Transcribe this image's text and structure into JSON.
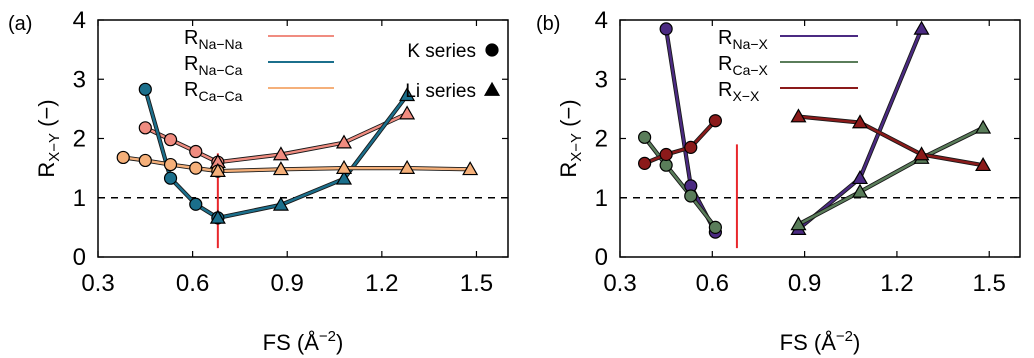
{
  "chart_data": [
    {
      "panel_label": "(a)",
      "type": "line",
      "xlabel": "FS (Å",
      "xlabel_sup": "−2",
      "xlabel_close": ")",
      "ylabel": "R",
      "ylabel_sub": "X−Y",
      "ylabel_unit": " (−)",
      "xlim": [
        0.3,
        1.6
      ],
      "ylim": [
        0,
        4
      ],
      "xticks": [
        0.3,
        0.6,
        0.9,
        1.2,
        1.5
      ],
      "xtick_labels": [
        "0.3",
        "0.6",
        "0.9",
        "1.2",
        "1.5"
      ],
      "yticks": [
        0,
        1,
        2,
        3,
        4
      ],
      "ytick_labels": [
        "0",
        "1",
        "2",
        "3",
        "4"
      ],
      "reference_line": {
        "y": 1,
        "style": "dashed",
        "color": "#000000"
      },
      "vertical_marker": {
        "x": 0.68,
        "y_range": [
          0.15,
          1.75
        ],
        "color": "#e8262b"
      },
      "legend": [
        {
          "label": "R",
          "sub": "Na−Na",
          "color": "#f08c80"
        },
        {
          "label": "R",
          "sub": "Na−Ca",
          "color": "#1b6f8c"
        },
        {
          "label": "R",
          "sub": "Ca−Ca",
          "color": "#f5b07a"
        }
      ],
      "marker_legend": [
        {
          "label": "K series",
          "marker": "circle"
        },
        {
          "label": "Li series",
          "marker": "triangle"
        }
      ],
      "series": [
        {
          "key": "Na-Na",
          "group": "K",
          "marker": "circle",
          "color": "#f08c80",
          "x": [
            0.45,
            0.53,
            0.61,
            0.68
          ],
          "y": [
            2.18,
            1.98,
            1.78,
            1.6
          ]
        },
        {
          "key": "Na-Na",
          "group": "Li",
          "marker": "triangle",
          "color": "#f08c80",
          "x": [
            0.68,
            0.88,
            1.08,
            1.28
          ],
          "y": [
            1.6,
            1.73,
            1.93,
            2.42
          ]
        },
        {
          "key": "Na-Ca",
          "group": "K",
          "marker": "circle",
          "color": "#1b6f8c",
          "x": [
            0.45,
            0.53,
            0.61,
            0.68
          ],
          "y": [
            2.83,
            1.33,
            0.89,
            0.66
          ]
        },
        {
          "key": "Na-Ca",
          "group": "Li",
          "marker": "triangle",
          "color": "#1b6f8c",
          "x": [
            0.68,
            0.88,
            1.08,
            1.28
          ],
          "y": [
            0.66,
            0.88,
            1.32,
            2.73
          ]
        },
        {
          "key": "Ca-Ca",
          "group": "K",
          "marker": "circle",
          "color": "#f5b07a",
          "x": [
            0.38,
            0.45,
            0.53,
            0.61,
            0.68
          ],
          "y": [
            1.68,
            1.63,
            1.56,
            1.5,
            1.45
          ]
        },
        {
          "key": "Ca-Ca",
          "group": "Li",
          "marker": "triangle",
          "color": "#f5b07a",
          "x": [
            0.68,
            0.88,
            1.08,
            1.28,
            1.48
          ],
          "y": [
            1.45,
            1.48,
            1.5,
            1.5,
            1.48
          ]
        }
      ]
    },
    {
      "panel_label": "(b)",
      "type": "line",
      "xlabel": "FS (Å",
      "xlabel_sup": "−2",
      "xlabel_close": ")",
      "ylabel": "R",
      "ylabel_sub": "X−Y",
      "ylabel_unit": " (−)",
      "xlim": [
        0.3,
        1.6
      ],
      "ylim": [
        0,
        4
      ],
      "xticks": [
        0.3,
        0.6,
        0.9,
        1.2,
        1.5
      ],
      "xtick_labels": [
        "0.3",
        "0.6",
        "0.9",
        "1.2",
        "1.5"
      ],
      "yticks": [
        0,
        1,
        2,
        3,
        4
      ],
      "ytick_labels": [
        "0",
        "1",
        "2",
        "3",
        "4"
      ],
      "reference_line": {
        "y": 1,
        "style": "dashed",
        "color": "#000000"
      },
      "vertical_marker": {
        "x": 0.68,
        "y_range": [
          0.15,
          1.9
        ],
        "color": "#e8262b"
      },
      "legend": [
        {
          "label": "R",
          "sub": "Na−X",
          "color": "#4b2a82"
        },
        {
          "label": "R",
          "sub": "Ca−X",
          "color": "#5a7d5a"
        },
        {
          "label": "R",
          "sub": "X−X",
          "color": "#8b1a1a"
        }
      ],
      "series": [
        {
          "key": "Na-X",
          "group": "K",
          "marker": "circle",
          "color": "#4b2a82",
          "x": [
            0.45,
            0.53,
            0.61
          ],
          "y": [
            3.85,
            1.2,
            0.42
          ]
        },
        {
          "key": "Na-X",
          "group": "Li",
          "marker": "triangle",
          "color": "#4b2a82",
          "x": [
            0.88,
            1.08,
            1.28
          ],
          "y": [
            0.47,
            1.33,
            3.85
          ]
        },
        {
          "key": "Ca-X",
          "group": "K",
          "marker": "circle",
          "color": "#5a7d5a",
          "x": [
            0.38,
            0.45,
            0.53,
            0.61
          ],
          "y": [
            2.02,
            1.55,
            1.03,
            0.5
          ]
        },
        {
          "key": "Ca-X",
          "group": "Li",
          "marker": "triangle",
          "color": "#5a7d5a",
          "x": [
            0.88,
            1.08,
            1.28,
            1.48
          ],
          "y": [
            0.55,
            1.1,
            1.67,
            2.18
          ]
        },
        {
          "key": "X-X",
          "group": "K",
          "marker": "circle",
          "color": "#8b1a1a",
          "x": [
            0.38,
            0.45,
            0.53,
            0.61
          ],
          "y": [
            1.58,
            1.73,
            1.85,
            2.3
          ]
        },
        {
          "key": "X-X",
          "group": "Li",
          "marker": "triangle",
          "color": "#8b1a1a",
          "x": [
            0.88,
            1.08,
            1.28,
            1.48
          ],
          "y": [
            2.37,
            2.27,
            1.73,
            1.55
          ]
        }
      ]
    }
  ]
}
